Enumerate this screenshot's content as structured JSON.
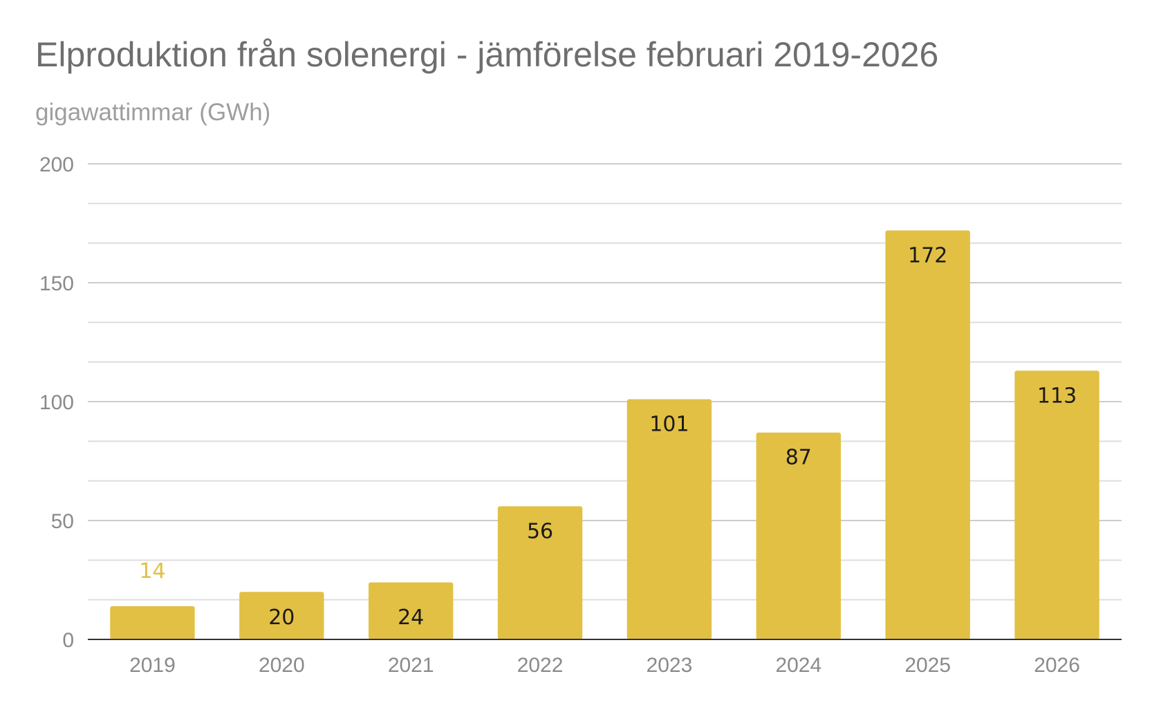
{
  "chart_data": {
    "type": "bar",
    "title": "Elproduktion från solenergi - jämförelse februari 2019-2026",
    "subtitle": "gigawattimmar (GWh)",
    "xlabel": "",
    "ylabel": "gigawattimmar (GWh)",
    "categories": [
      "2019",
      "2020",
      "2021",
      "2022",
      "2023",
      "2024",
      "2025",
      "2026"
    ],
    "values": [
      14,
      20,
      24,
      56,
      101,
      87,
      172,
      113
    ],
    "data_labels": [
      "14",
      "20",
      "24",
      "56",
      "101",
      "87",
      "172",
      "113"
    ],
    "ylim": [
      0,
      200
    ],
    "yticks": [
      0,
      50,
      100,
      150,
      200
    ],
    "ytick_labels": [
      "0",
      "50",
      "100",
      "150",
      "200"
    ],
    "minor_gridlines": true,
    "legend": "none",
    "bar_color": "#e2c044",
    "outside_label_color": "#e2c044",
    "inside_label_color": "#1a1a1a",
    "gridline_color": "#dddddd",
    "axis_color": "#333333"
  }
}
